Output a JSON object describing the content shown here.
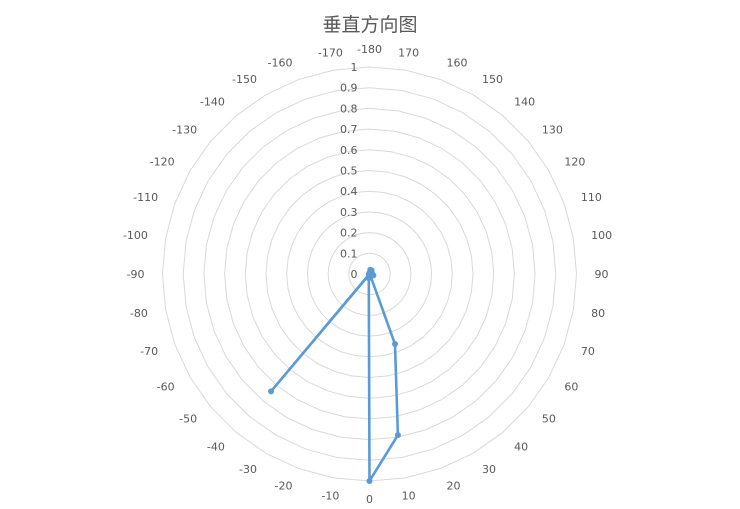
{
  "chart_data": {
    "type": "radar",
    "title": "垂直方向图",
    "angle_labels": [
      "0",
      "-10",
      "-20",
      "-30",
      "-40",
      "-50",
      "-60",
      "-70",
      "-80",
      "-90",
      "-100",
      "-110",
      "-120",
      "-130",
      "-140",
      "-150",
      "-160",
      "-170",
      "-180",
      "170",
      "160",
      "150",
      "140",
      "130",
      "120",
      "110",
      "100",
      "90",
      "80",
      "70",
      "60",
      "50",
      "40",
      "30",
      "20",
      "10"
    ],
    "radial_ticks": [
      "0",
      "0.1",
      "0.2",
      "0.3",
      "0.4",
      "0.5",
      "0.6",
      "0.7",
      "0.8",
      "0.9",
      "1"
    ],
    "rlim": [
      0,
      1
    ],
    "grid": true,
    "legend": "none",
    "series": [
      {
        "color": "#5b9bd5",
        "values": [
          1.0,
          0.02,
          0.008,
          0.005,
          0.74,
          0.003,
          0.002,
          0.002,
          0.002,
          0.002,
          0.002,
          0.002,
          0.002,
          0.002,
          0.002,
          0.002,
          0.002,
          0.003,
          0.004,
          0.02,
          0.02,
          0.02,
          0.015,
          0.01,
          0.008,
          0.006,
          0.01,
          0.013,
          0.012,
          0.02,
          0.008,
          0.006,
          0.005,
          0.008,
          0.36,
          0.79
        ]
      }
    ]
  }
}
